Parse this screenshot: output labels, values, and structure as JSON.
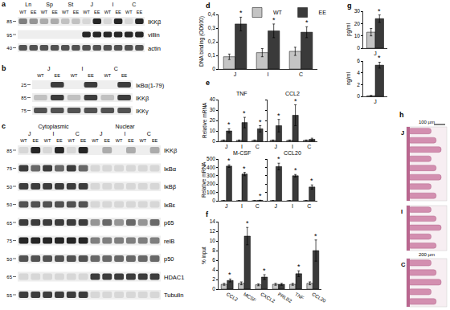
{
  "chart_data": [
    {
      "panel": "d",
      "type": "bar",
      "y_label": "DNA binding (OD600)",
      "categories": [
        "J",
        "I",
        "C"
      ],
      "ylim": [
        0,
        0.4
      ],
      "yticks": [
        0,
        {
          "value": 0.1,
          "label": "0,1"
        },
        {
          "value": 0.2,
          "label": "0,2"
        },
        {
          "value": 0.3,
          "label": "0,3"
        },
        {
          "value": 0.4,
          "label": "0,4"
        }
      ],
      "legend": "top",
      "series": [
        {
          "name": "WT",
          "color": "#c4c4c4",
          "values": [
            0.09,
            0.12,
            0.13
          ],
          "errors": [
            0.02,
            0.03,
            0.03
          ]
        },
        {
          "name": "EE",
          "color": "#3a3a3a",
          "values": [
            0.33,
            0.28,
            0.27
          ],
          "errors": [
            0.05,
            0.05,
            0.04
          ],
          "annotations": [
            "*",
            "*",
            "*"
          ]
        }
      ]
    },
    {
      "panel": "e",
      "type": "bar",
      "title": "TNF",
      "y_label": "Relative mRNA",
      "categories": [
        "J",
        "I",
        "C"
      ],
      "ylim": [
        0,
        40
      ],
      "yticks": [
        0,
        10,
        20,
        30,
        40
      ],
      "series": [
        {
          "color": "#c4c4c4",
          "values": [
            1,
            1,
            1
          ],
          "errors": [
            0.3,
            0.3,
            0.3
          ]
        },
        {
          "color": "#3a3a3a",
          "values": [
            10,
            18,
            12
          ],
          "errors": [
            2,
            5,
            3
          ],
          "annotations": [
            "*",
            "*",
            "*"
          ]
        }
      ]
    },
    {
      "type": "bar",
      "title": "CCL2",
      "categories": [
        "J",
        "I",
        "C"
      ],
      "tick_labels": "x",
      "ylim": [
        0,
        40
      ],
      "yticks": [
        0,
        10,
        20,
        30,
        40
      ],
      "series": [
        {
          "color": "#c4c4c4",
          "values": [
            1,
            1,
            1
          ],
          "errors": [
            0.3,
            0.3,
            0.3
          ]
        },
        {
          "color": "#3a3a3a",
          "values": [
            15,
            25,
            2
          ],
          "errors": [
            6,
            10,
            1
          ],
          "annotations": [
            "*",
            "*",
            null
          ]
        }
      ]
    },
    {
      "type": "bar",
      "title": "M-CSF",
      "y_label": "Relative mRNA",
      "categories": [
        "J",
        "I",
        "C"
      ],
      "ylim": [
        0,
        500
      ],
      "yticks": [
        0,
        100,
        200,
        300,
        400,
        500
      ],
      "series": [
        {
          "color": "#c4c4c4",
          "values": [
            1,
            1,
            1
          ],
          "errors": [
            0.5,
            0.5,
            0.5
          ]
        },
        {
          "color": "#3a3a3a",
          "values": [
            415,
            320,
            5
          ],
          "errors": [
            15,
            20,
            2
          ],
          "annotations": [
            "*",
            "*",
            "*"
          ]
        }
      ]
    },
    {
      "type": "bar",
      "title": "CCL20",
      "categories": [
        "J",
        "I",
        "C"
      ],
      "tick_labels": "x",
      "ylim": [
        0,
        500
      ],
      "yticks": [
        0,
        100,
        200,
        300,
        400,
        500
      ],
      "series": [
        {
          "color": "#c4c4c4",
          "values": [
            1,
            1,
            1
          ],
          "errors": [
            0.5,
            0.5,
            0.5
          ]
        },
        {
          "color": "#3a3a3a",
          "values": [
            410,
            300,
            165
          ],
          "errors": [
            40,
            15,
            25
          ],
          "annotations": [
            "*",
            "*",
            "*"
          ]
        }
      ]
    },
    {
      "panel": "f",
      "type": "bar",
      "y_label": "% input",
      "categories": [
        "CCL2",
        "MCSF",
        "CXCL2",
        "PRLB2",
        "TNF",
        "CCL20"
      ],
      "ylim": [
        0,
        14
      ],
      "yticks": [
        0,
        2,
        4,
        6,
        8,
        10,
        12,
        14
      ],
      "series": [
        {
          "color": "#c4c4c4",
          "values": [
            1,
            1.2,
            0.9,
            1,
            1,
            1.2
          ],
          "errors": [
            0.2,
            0.3,
            0.2,
            0.2,
            0.2,
            0.3
          ]
        },
        {
          "color": "#3a3a3a",
          "values": [
            1.8,
            11,
            2.5,
            1,
            3.2,
            8
          ],
          "errors": [
            0.3,
            1.8,
            0.5,
            0.2,
            0.6,
            2.2
          ],
          "annotations": [
            "*",
            "*",
            "*",
            null,
            "*",
            "*"
          ]
        }
      ]
    },
    {
      "panel": "g",
      "type": "bar",
      "y_label": "pg/ml",
      "categories": [
        "J"
      ],
      "ylim": [
        0,
        30
      ],
      "yticks": [
        0,
        10,
        20,
        30
      ],
      "series": [
        {
          "color": "#c4c4c4",
          "values": [
            13
          ],
          "errors": [
            3
          ]
        },
        {
          "color": "#3a3a3a",
          "values": [
            24
          ],
          "errors": [
            3
          ],
          "annotations": [
            "*"
          ]
        }
      ]
    },
    {
      "type": "bar",
      "y_label": "ng/ml",
      "categories": [
        "J"
      ],
      "ylim": [
        0,
        6
      ],
      "yticks": [
        0,
        2,
        4,
        6
      ],
      "series": [
        {
          "color": "#c4c4c4",
          "values": [
            0.1
          ],
          "errors": [
            0.05
          ]
        },
        {
          "color": "#3a3a3a",
          "values": [
            5.3
          ],
          "errors": [
            0.5
          ],
          "annotations": [
            "*"
          ]
        }
      ]
    }
  ],
  "blots": [
    {
      "panel": "a",
      "groups": [
        "Ln",
        "Sp",
        "St",
        "J",
        "I",
        "C"
      ],
      "conditions": [
        "WT",
        "EE"
      ],
      "rows": [
        {
          "label": "IKKβ",
          "marker": 85,
          "bands": [
            0.5,
            0.4,
            0.3,
            0.3,
            0.2,
            0.2,
            0.1,
            0.9,
            0.1,
            0.9,
            0.1,
            0.9
          ]
        },
        {
          "label": "villin",
          "marker": 95,
          "bands": [
            0,
            0,
            0,
            0,
            0,
            0,
            0.9,
            0.9,
            0.9,
            0.9,
            0.9,
            0.9
          ]
        },
        {
          "label": "actin",
          "marker": 40,
          "bands": [
            0.7,
            0.7,
            0.7,
            0.7,
            0.7,
            0.7,
            0.7,
            0.7,
            0.7,
            0.7,
            0.7,
            0.7
          ]
        }
      ]
    },
    {
      "panel": "b",
      "groups": [
        "J",
        "I",
        "C"
      ],
      "conditions": [
        "WT",
        "EE"
      ],
      "rows": [
        {
          "label": "IκBα(1-79)",
          "marker": 25,
          "bands": [
            0,
            0.8,
            0,
            0.8,
            0,
            0.8
          ]
        },
        {
          "label": "IKKβ",
          "marker": 85,
          "bands": [
            0.2,
            0.8,
            0.2,
            0.8,
            0.2,
            0.8
          ]
        },
        {
          "label": "IKKγ",
          "marker": 75,
          "bands": [
            0.7,
            0.7,
            0.7,
            0.7,
            0.7,
            0.7
          ]
        }
      ]
    },
    {
      "panel": "c",
      "sections": [
        "Cytoplasmic",
        "Nuclear"
      ],
      "groups": [
        "J",
        "I",
        "C"
      ],
      "conditions": [
        "WT",
        "EE"
      ],
      "rows": [
        {
          "label": "IKKβ",
          "marker": 85,
          "bands": [
            0.1,
            0.9,
            0.1,
            0.9,
            0.1,
            0.9,
            0,
            0.3,
            0,
            0.3,
            0,
            0.3
          ]
        },
        {
          "label": "IκBα",
          "marker": 75,
          "bands": [
            0.8,
            0.6,
            0.8,
            0.6,
            0.8,
            0.6,
            0.1,
            0.1,
            0.1,
            0.1,
            0.1,
            0.1
          ]
        },
        {
          "label": "IκBβ",
          "marker": 50,
          "bands": [
            0.8,
            0.8,
            0.8,
            0.8,
            0.8,
            0.8,
            0.1,
            0.1,
            0.1,
            0.1,
            0.1,
            0.1
          ]
        },
        {
          "label": "IκBε",
          "marker": 50,
          "bands": [
            0.7,
            0.7,
            0.7,
            0.7,
            0.7,
            0.7,
            0.1,
            0.1,
            0.1,
            0.1,
            0.1,
            0.1
          ]
        },
        {
          "label": "p65",
          "marker": 65,
          "bands": [
            0.8,
            0.8,
            0.8,
            0.8,
            0.8,
            0.8,
            0.4,
            0.6,
            0.4,
            0.6,
            0.4,
            0.6
          ]
        },
        {
          "label": "relB",
          "marker": 75,
          "bands": [
            0.9,
            0.9,
            0.9,
            0.9,
            0.9,
            0.9,
            0.5,
            0.5,
            0.5,
            0.5,
            0.5,
            0.5
          ]
        },
        {
          "label": "p50",
          "marker": 50,
          "bands": [
            0.7,
            0.7,
            0.7,
            0.7,
            0.7,
            0.7,
            0.6,
            0.6,
            0.6,
            0.6,
            0.6,
            0.6
          ]
        },
        {
          "label": "HDAC1",
          "marker": 65,
          "bands": [
            0.1,
            0.1,
            0.1,
            0.1,
            0.1,
            0.1,
            0.8,
            0.8,
            0.8,
            0.8,
            0.8,
            0.8
          ]
        },
        {
          "label": "Tubulin",
          "marker": 55,
          "bands": [
            0.8,
            0.8,
            0.8,
            0.8,
            0.8,
            0.8,
            0.1,
            0.1,
            0.1,
            0.1,
            0.1,
            0.1
          ]
        }
      ]
    }
  ],
  "histology": {
    "panel": "h",
    "images": [
      {
        "label": "J"
      },
      {
        "label": "I"
      },
      {
        "label": "C"
      }
    ],
    "scale_bars": [
      "100 µm",
      "200 µm"
    ]
  }
}
